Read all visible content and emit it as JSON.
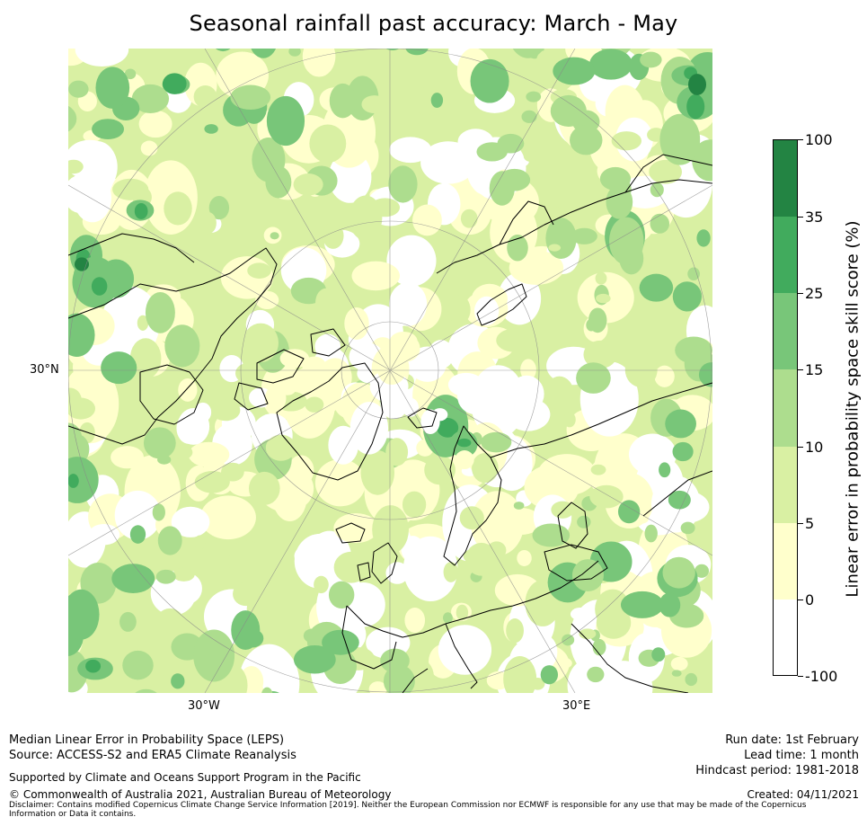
{
  "title": "Seasonal rainfall past accuracy: March - May",
  "map": {
    "labels": {
      "left_lat": "30°N",
      "bottom_left_lon": "30°W",
      "bottom_right_lon": "30°E"
    },
    "colors": {
      "white": "#ffffff",
      "cream": "#ffffcc",
      "lightyellowgreen": "#d9f0a3",
      "lightgreen": "#addd8e",
      "midgreen": "#78c679",
      "green": "#41ab5d",
      "darkgreen": "#238443"
    }
  },
  "colorbar": {
    "title": "Linear error in probability space skill score (%)",
    "tick_labels": [
      "100",
      "35",
      "25",
      "15",
      "10",
      "5",
      "0",
      "-100"
    ],
    "bins": [
      {
        "from": 35,
        "to": 100,
        "color": "#238443"
      },
      {
        "from": 25,
        "to": 35,
        "color": "#41ab5d"
      },
      {
        "from": 15,
        "to": 25,
        "color": "#78c679"
      },
      {
        "from": 10,
        "to": 15,
        "color": "#addd8e"
      },
      {
        "from": 5,
        "to": 10,
        "color": "#d9f0a3"
      },
      {
        "from": 0,
        "to": 5,
        "color": "#ffffcc"
      },
      {
        "from": -100,
        "to": 0,
        "color": "#ffffff"
      }
    ]
  },
  "footer": {
    "left_line1": "Median Linear Error in Probability Space (LEPS)",
    "left_line2": "Source: ACCESS-S2 and ERA5 Climate Reanalysis",
    "supported": "Supported by Climate and Oceans Support Program in the Pacific",
    "copyright": "© Commonwealth of Australia 2021, Australian Bureau of Meteorology",
    "disclaimer": "Disclaimer: Contains modified Copernicus Climate Change Service Information [2019]. Neither the European Commission nor ECMWF is responsible for any use that may be made of the Copernicus Information or Data it contains.",
    "run_date": "Run date: 1st February",
    "lead_time": "Lead time: 1 month",
    "hindcast": "Hindcast period: 1981-2018",
    "created": "Created: 04/11/2021"
  }
}
